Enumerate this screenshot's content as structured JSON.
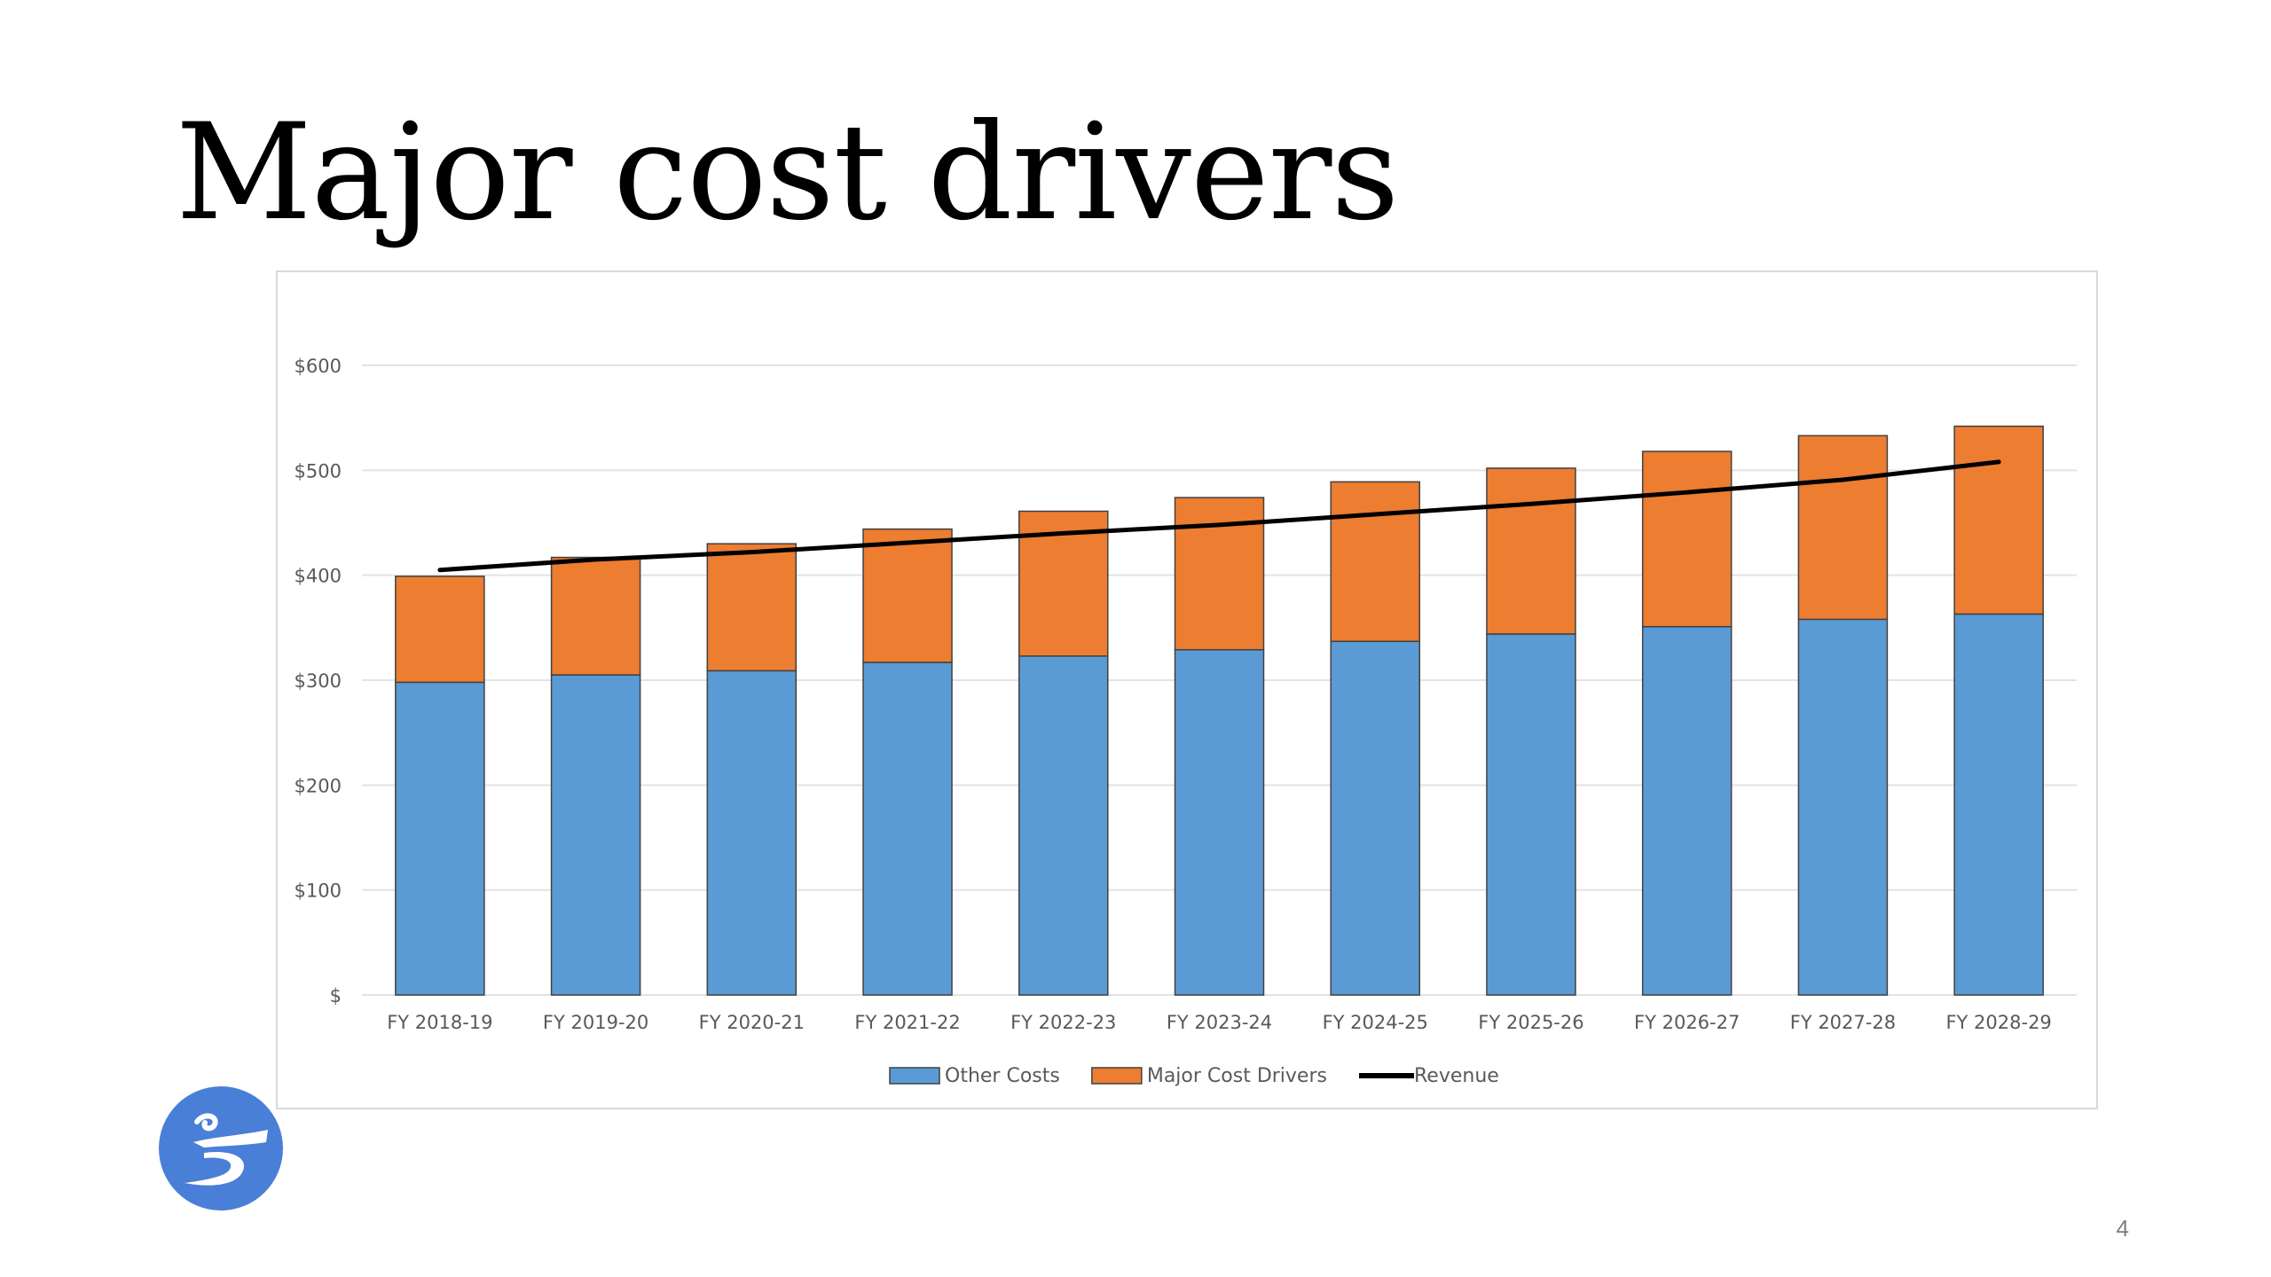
{
  "slide": {
    "title": "Major cost drivers",
    "page_number": "4",
    "logo_icon": "swirl-logo-icon"
  },
  "chart_data": {
    "type": "bar",
    "stacked": true,
    "categories": [
      "FY 2018-19",
      "FY 2019-20",
      "FY 2020-21",
      "FY 2021-22",
      "FY 2022-23",
      "FY 2023-24",
      "FY 2024-25",
      "FY 2025-26",
      "FY 2026-27",
      "FY 2027-28",
      "FY 2028-29"
    ],
    "series": [
      {
        "name": "Other Costs",
        "type": "bar",
        "color": "#5b9bd5",
        "values": [
          298,
          305,
          309,
          317,
          323,
          329,
          337,
          344,
          351,
          358,
          363
        ]
      },
      {
        "name": "Major Cost Drivers",
        "type": "bar",
        "color": "#ed7d31",
        "values": [
          101,
          112,
          121,
          127,
          138,
          145,
          152,
          158,
          167,
          175,
          179
        ]
      },
      {
        "name": "Revenue",
        "type": "line",
        "color": "#000000",
        "values": [
          405,
          415,
          422,
          431,
          440,
          448,
          458,
          468,
          479,
          491,
          508
        ]
      }
    ],
    "y_ticks": [
      {
        "value": 0,
        "label": "$"
      },
      {
        "value": 100,
        "label": "$100"
      },
      {
        "value": 200,
        "label": "$200"
      },
      {
        "value": 300,
        "label": "$300"
      },
      {
        "value": 400,
        "label": "$400"
      },
      {
        "value": 500,
        "label": "$500"
      },
      {
        "value": 600,
        "label": "$600"
      }
    ],
    "ylim": [
      0,
      600
    ],
    "grid": true,
    "legend_position": "bottom",
    "xlabel": "",
    "ylabel": ""
  }
}
